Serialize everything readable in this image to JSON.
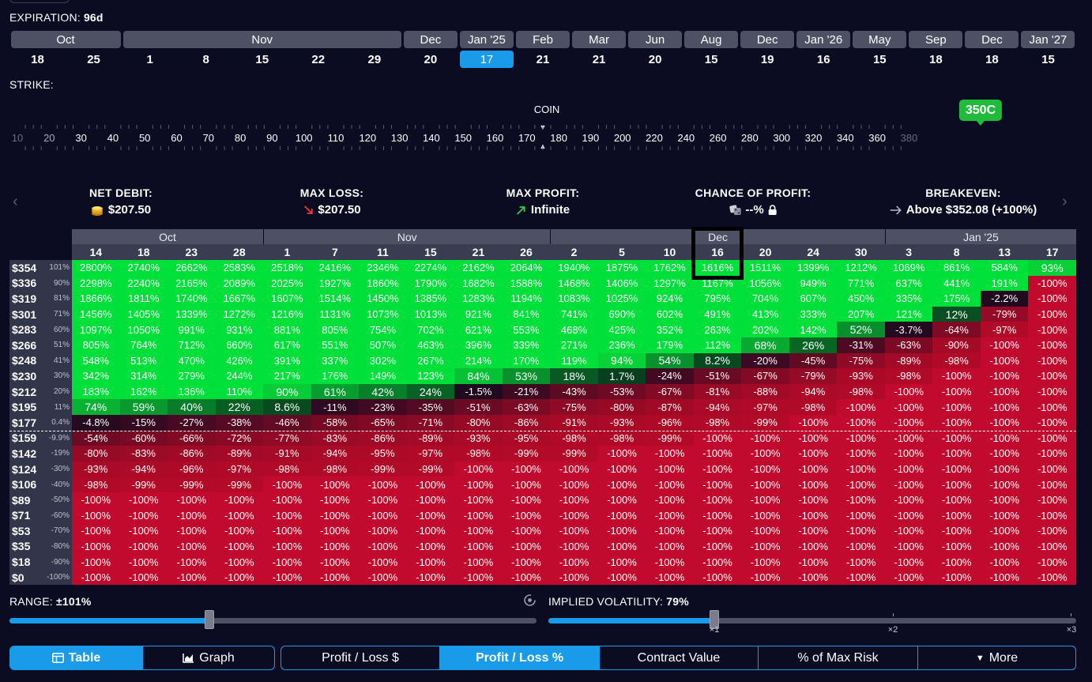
{
  "expiration": {
    "label": "EXPIRATION:",
    "value": "96d",
    "months": [
      {
        "label": "Oct",
        "span": 2
      },
      {
        "label": "Nov",
        "span": 5
      },
      {
        "label": "Dec",
        "span": 1
      },
      {
        "label": "Jan '25",
        "span": 1
      },
      {
        "label": "Feb",
        "span": 1
      },
      {
        "label": "Mar",
        "span": 1
      },
      {
        "label": "Jun",
        "span": 1
      },
      {
        "label": "Aug",
        "span": 1
      },
      {
        "label": "Dec",
        "span": 1
      },
      {
        "label": "Jan '26",
        "span": 1
      },
      {
        "label": "May",
        "span": 1
      },
      {
        "label": "Sep",
        "span": 1
      },
      {
        "label": "Dec",
        "span": 1
      },
      {
        "label": "Jan '27",
        "span": 1
      }
    ],
    "days": [
      "18",
      "25",
      "1",
      "8",
      "15",
      "22",
      "29",
      "20",
      "17",
      "21",
      "21",
      "20",
      "15",
      "19",
      "16",
      "15",
      "18",
      "18",
      "15"
    ],
    "selected_index": 8
  },
  "strike": {
    "label": "STRIKE:",
    "ticks": [
      "10",
      "20",
      "30",
      "40",
      "50",
      "60",
      "70",
      "80",
      "90",
      "100",
      "110",
      "120",
      "130",
      "140",
      "150",
      "160",
      "170",
      "180",
      "190",
      "200",
      "220",
      "240",
      "260",
      "280",
      "300",
      "320",
      "340",
      "360",
      "380"
    ],
    "coin_label": "COIN",
    "selected_badge": "350C"
  },
  "stats": {
    "net_debit": {
      "title": "NET DEBIT:",
      "value": "$207.50",
      "icon": "coins-icon"
    },
    "max_loss": {
      "title": "MAX LOSS:",
      "value": "$207.50",
      "icon": "arrow-down-red-icon"
    },
    "max_profit": {
      "title": "MAX PROFIT:",
      "value": "Infinite",
      "icon": "arrow-up-green-icon"
    },
    "chance_of_profit": {
      "title": "CHANCE OF PROFIT:",
      "value": "--%",
      "icon": "dice-icon"
    },
    "breakeven": {
      "title": "BREAKEVEN:",
      "value": "Above $352.08 (+100%)",
      "icon": "arrow-right-icon"
    }
  },
  "table": {
    "months": [
      {
        "label": "Oct",
        "span": 4
      },
      {
        "label": "Nov",
        "span": 6
      },
      {
        "label": "Dec",
        "span": 7
      },
      {
        "label": "Jan '25",
        "span": 4
      }
    ],
    "days": [
      "14",
      "18",
      "23",
      "28",
      "1",
      "7",
      "11",
      "15",
      "21",
      "26",
      "2",
      "5",
      "10",
      "16",
      "20",
      "24",
      "30",
      "3",
      "8",
      "13",
      "17"
    ],
    "rows": [
      {
        "price": "$354",
        "pct": "101%",
        "values": [
          "2800%",
          "2740%",
          "2662%",
          "2583%",
          "2518%",
          "2416%",
          "2346%",
          "2274%",
          "2162%",
          "2064%",
          "1940%",
          "1875%",
          "1762%",
          "1616%",
          "1511%",
          "1399%",
          "1212%",
          "1069%",
          "861%",
          "584%",
          "93%"
        ]
      },
      {
        "price": "$336",
        "pct": "90%",
        "values": [
          "2298%",
          "2240%",
          "2165%",
          "2089%",
          "2025%",
          "1927%",
          "1860%",
          "1790%",
          "1682%",
          "1588%",
          "1468%",
          "1406%",
          "1297%",
          "1167%",
          "1056%",
          "949%",
          "771%",
          "637%",
          "441%",
          "191%",
          "-100%"
        ]
      },
      {
        "price": "$319",
        "pct": "81%",
        "values": [
          "1866%",
          "1811%",
          "1740%",
          "1667%",
          "1607%",
          "1514%",
          "1450%",
          "1385%",
          "1283%",
          "1194%",
          "1083%",
          "1025%",
          "924%",
          "795%",
          "704%",
          "607%",
          "450%",
          "335%",
          "175%",
          "-2.2%",
          "-100%"
        ]
      },
      {
        "price": "$301",
        "pct": "71%",
        "values": [
          "1456%",
          "1405%",
          "1339%",
          "1272%",
          "1216%",
          "1131%",
          "1073%",
          "1013%",
          "921%",
          "841%",
          "741%",
          "690%",
          "602%",
          "491%",
          "413%",
          "333%",
          "207%",
          "121%",
          "12%",
          "-79%",
          "-100%"
        ]
      },
      {
        "price": "$283",
        "pct": "60%",
        "values": [
          "1097%",
          "1050%",
          "991%",
          "931%",
          "881%",
          "805%",
          "754%",
          "702%",
          "621%",
          "553%",
          "468%",
          "425%",
          "352%",
          "263%",
          "202%",
          "142%",
          "52%",
          "-3.7%",
          "-64%",
          "-97%",
          "-100%"
        ]
      },
      {
        "price": "$266",
        "pct": "51%",
        "values": [
          "805%",
          "764%",
          "712%",
          "660%",
          "617%",
          "551%",
          "507%",
          "463%",
          "396%",
          "339%",
          "271%",
          "236%",
          "179%",
          "112%",
          "68%",
          "26%",
          "-31%",
          "-63%",
          "-90%",
          "-100%",
          "-100%"
        ]
      },
      {
        "price": "$248",
        "pct": "41%",
        "values": [
          "548%",
          "513%",
          "470%",
          "426%",
          "391%",
          "337%",
          "302%",
          "267%",
          "214%",
          "170%",
          "119%",
          "94%",
          "54%",
          "8.2%",
          "-20%",
          "-45%",
          "-75%",
          "-89%",
          "-98%",
          "-100%",
          "-100%"
        ]
      },
      {
        "price": "$230",
        "pct": "30%",
        "values": [
          "342%",
          "314%",
          "279%",
          "244%",
          "217%",
          "176%",
          "149%",
          "123%",
          "84%",
          "53%",
          "18%",
          "1.7%",
          "-24%",
          "-51%",
          "-67%",
          "-79%",
          "-93%",
          "-98%",
          "-100%",
          "-100%",
          "-100%"
        ]
      },
      {
        "price": "$212",
        "pct": "20%",
        "values": [
          "183%",
          "162%",
          "136%",
          "110%",
          "90%",
          "61%",
          "42%",
          "24%",
          "-1.5%",
          "-21%",
          "-43%",
          "-53%",
          "-67%",
          "-81%",
          "-88%",
          "-94%",
          "-98%",
          "-100%",
          "-100%",
          "-100%",
          "-100%"
        ]
      },
      {
        "price": "$195",
        "pct": "11%",
        "values": [
          "74%",
          "59%",
          "40%",
          "22%",
          "8.6%",
          "-11%",
          "-23%",
          "-35%",
          "-51%",
          "-63%",
          "-75%",
          "-80%",
          "-87%",
          "-94%",
          "-97%",
          "-98%",
          "-100%",
          "-100%",
          "-100%",
          "-100%",
          "-100%"
        ]
      },
      {
        "price": "$177",
        "pct": "0.4%",
        "values": [
          "-4.8%",
          "-15%",
          "-27%",
          "-38%",
          "-46%",
          "-58%",
          "-65%",
          "-71%",
          "-80%",
          "-86%",
          "-91%",
          "-93%",
          "-96%",
          "-98%",
          "-99%",
          "-100%",
          "-100%",
          "-100%",
          "-100%",
          "-100%",
          "-100%"
        ]
      },
      {
        "price": "$159",
        "pct": "-9.9%",
        "values": [
          "-54%",
          "-60%",
          "-66%",
          "-72%",
          "-77%",
          "-83%",
          "-86%",
          "-89%",
          "-93%",
          "-95%",
          "-98%",
          "-98%",
          "-99%",
          "-100%",
          "-100%",
          "-100%",
          "-100%",
          "-100%",
          "-100%",
          "-100%",
          "-100%"
        ]
      },
      {
        "price": "$142",
        "pct": "-19%",
        "values": [
          "-80%",
          "-83%",
          "-86%",
          "-89%",
          "-91%",
          "-94%",
          "-95%",
          "-97%",
          "-98%",
          "-99%",
          "-99%",
          "-100%",
          "-100%",
          "-100%",
          "-100%",
          "-100%",
          "-100%",
          "-100%",
          "-100%",
          "-100%",
          "-100%"
        ]
      },
      {
        "price": "$124",
        "pct": "-30%",
        "values": [
          "-93%",
          "-94%",
          "-96%",
          "-97%",
          "-98%",
          "-98%",
          "-99%",
          "-99%",
          "-100%",
          "-100%",
          "-100%",
          "-100%",
          "-100%",
          "-100%",
          "-100%",
          "-100%",
          "-100%",
          "-100%",
          "-100%",
          "-100%",
          "-100%"
        ]
      },
      {
        "price": "$106",
        "pct": "-40%",
        "values": [
          "-98%",
          "-99%",
          "-99%",
          "-99%",
          "-100%",
          "-100%",
          "-100%",
          "-100%",
          "-100%",
          "-100%",
          "-100%",
          "-100%",
          "-100%",
          "-100%",
          "-100%",
          "-100%",
          "-100%",
          "-100%",
          "-100%",
          "-100%",
          "-100%"
        ]
      },
      {
        "price": "$89",
        "pct": "-50%",
        "values": [
          "-100%",
          "-100%",
          "-100%",
          "-100%",
          "-100%",
          "-100%",
          "-100%",
          "-100%",
          "-100%",
          "-100%",
          "-100%",
          "-100%",
          "-100%",
          "-100%",
          "-100%",
          "-100%",
          "-100%",
          "-100%",
          "-100%",
          "-100%",
          "-100%"
        ]
      },
      {
        "price": "$71",
        "pct": "-60%",
        "values": [
          "-100%",
          "-100%",
          "-100%",
          "-100%",
          "-100%",
          "-100%",
          "-100%",
          "-100%",
          "-100%",
          "-100%",
          "-100%",
          "-100%",
          "-100%",
          "-100%",
          "-100%",
          "-100%",
          "-100%",
          "-100%",
          "-100%",
          "-100%",
          "-100%"
        ]
      },
      {
        "price": "$53",
        "pct": "-70%",
        "values": [
          "-100%",
          "-100%",
          "-100%",
          "-100%",
          "-100%",
          "-100%",
          "-100%",
          "-100%",
          "-100%",
          "-100%",
          "-100%",
          "-100%",
          "-100%",
          "-100%",
          "-100%",
          "-100%",
          "-100%",
          "-100%",
          "-100%",
          "-100%",
          "-100%"
        ]
      },
      {
        "price": "$35",
        "pct": "-80%",
        "values": [
          "-100%",
          "-100%",
          "-100%",
          "-100%",
          "-100%",
          "-100%",
          "-100%",
          "-100%",
          "-100%",
          "-100%",
          "-100%",
          "-100%",
          "-100%",
          "-100%",
          "-100%",
          "-100%",
          "-100%",
          "-100%",
          "-100%",
          "-100%",
          "-100%"
        ]
      },
      {
        "price": "$18",
        "pct": "-90%",
        "values": [
          "-100%",
          "-100%",
          "-100%",
          "-100%",
          "-100%",
          "-100%",
          "-100%",
          "-100%",
          "-100%",
          "-100%",
          "-100%",
          "-100%",
          "-100%",
          "-100%",
          "-100%",
          "-100%",
          "-100%",
          "-100%",
          "-100%",
          "-100%",
          "-100%"
        ]
      },
      {
        "price": "$0",
        "pct": "-100%",
        "values": [
          "-100%",
          "-100%",
          "-100%",
          "-100%",
          "-100%",
          "-100%",
          "-100%",
          "-100%",
          "-100%",
          "-100%",
          "-100%",
          "-100%",
          "-100%",
          "-100%",
          "-100%",
          "-100%",
          "-100%",
          "-100%",
          "-100%",
          "-100%",
          "-100%"
        ]
      }
    ],
    "highlight": {
      "row": 0,
      "col": 13
    }
  },
  "range": {
    "label": "RANGE:",
    "value": "±101%",
    "level": 0.38
  },
  "implied_volatility": {
    "label": "IMPLIED VOLATILITY:",
    "value": "79%",
    "level": 0.315,
    "ticks": [
      "×1",
      "×2",
      "×3"
    ]
  },
  "view_tabs": [
    {
      "label": "Table",
      "icon": "table-icon",
      "active": true
    },
    {
      "label": "Graph",
      "icon": "graph-icon",
      "active": false
    }
  ],
  "metric_tabs": [
    {
      "label": "Profit / Loss $",
      "active": false
    },
    {
      "label": "Profit / Loss %",
      "active": true
    },
    {
      "label": "Contract Value",
      "active": false
    },
    {
      "label": "% of Max Risk",
      "active": false
    },
    {
      "label": "More",
      "icon": "caret-down-icon",
      "active": false
    }
  ],
  "colors": {
    "background": "#0b0b22",
    "accent": "#1a9bea",
    "profit": "#00e03a",
    "loss": "#c20a2e",
    "badge": "#1fbb3a"
  }
}
